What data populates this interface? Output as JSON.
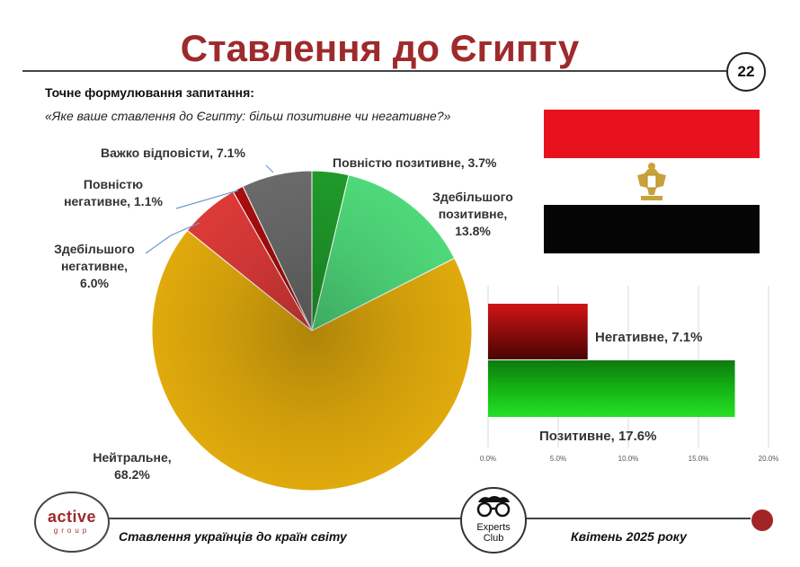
{
  "slide": {
    "title": "Ставлення до Єгипту",
    "page_number": "22",
    "question_label": "Точне формулювання запитання:",
    "question_text": "«Яке ваше ставлення до Єгипту: більш позитивне чи негативне?»"
  },
  "footer": {
    "left_text": "Ставлення українців до країн світу",
    "right_text": "Квітень 2025 року",
    "logo_active_main": "active",
    "logo_active_sub": "group",
    "logo_experts_line1": "Experts",
    "logo_experts_line2": "Club"
  },
  "colors": {
    "accent": "#9e2a2b",
    "flag_red": "#e8121e",
    "flag_black": "#050505"
  },
  "chart_data": [
    {
      "type": "pie",
      "series": [
        {
          "label": "Повністю позитивне, 3.7%",
          "value": 3.7,
          "color": "#1f9a2a"
        },
        {
          "label": "Здебільшого позитивне, 13.8%",
          "value": 13.8,
          "color": "#4fd97a"
        },
        {
          "label": "Нейтральне, 68.2%",
          "value": 68.2,
          "color": "#e0aa0c"
        },
        {
          "label": "Здебільшого негативне, 6.0%",
          "value": 6.0,
          "color": "#dd3a38"
        },
        {
          "label": "Повністю негативне, 1.1%",
          "value": 1.1,
          "color": "#a80d0d"
        },
        {
          "label": "Важко відповісти, 7.1%",
          "value": 7.1,
          "color": "#6a6a6a"
        }
      ],
      "labels": {
        "full_pos": "Повністю позитивне, 3.7%",
        "mostly_pos_1": "Здебільшого",
        "mostly_pos_2": "позитивне,",
        "mostly_pos_3": "13.8%",
        "neutral_1": "Нейтральне,",
        "neutral_2": "68.2%",
        "mostly_neg_1": "Здебільшого",
        "mostly_neg_2": "негативне,",
        "mostly_neg_3": "6.0%",
        "full_neg_1": "Повністю",
        "full_neg_2": "негативне, 1.1%",
        "hard_1": "Важко відповісти, 7.1%"
      }
    },
    {
      "type": "bar",
      "orientation": "horizontal",
      "categories": [
        "Негативне",
        "Позитивне"
      ],
      "values": [
        7.1,
        17.6
      ],
      "bar_labels": [
        "Негативне, 7.1%",
        "Позитивне, 17.6%"
      ],
      "colors": [
        "#c81010",
        "#12a512"
      ],
      "xlim": [
        0,
        20
      ],
      "ticks": [
        "0.0%",
        "5.0%",
        "10.0%",
        "15.0%",
        "20.0%"
      ],
      "tick_values": [
        0,
        5,
        10,
        15,
        20
      ],
      "grid": true
    }
  ]
}
